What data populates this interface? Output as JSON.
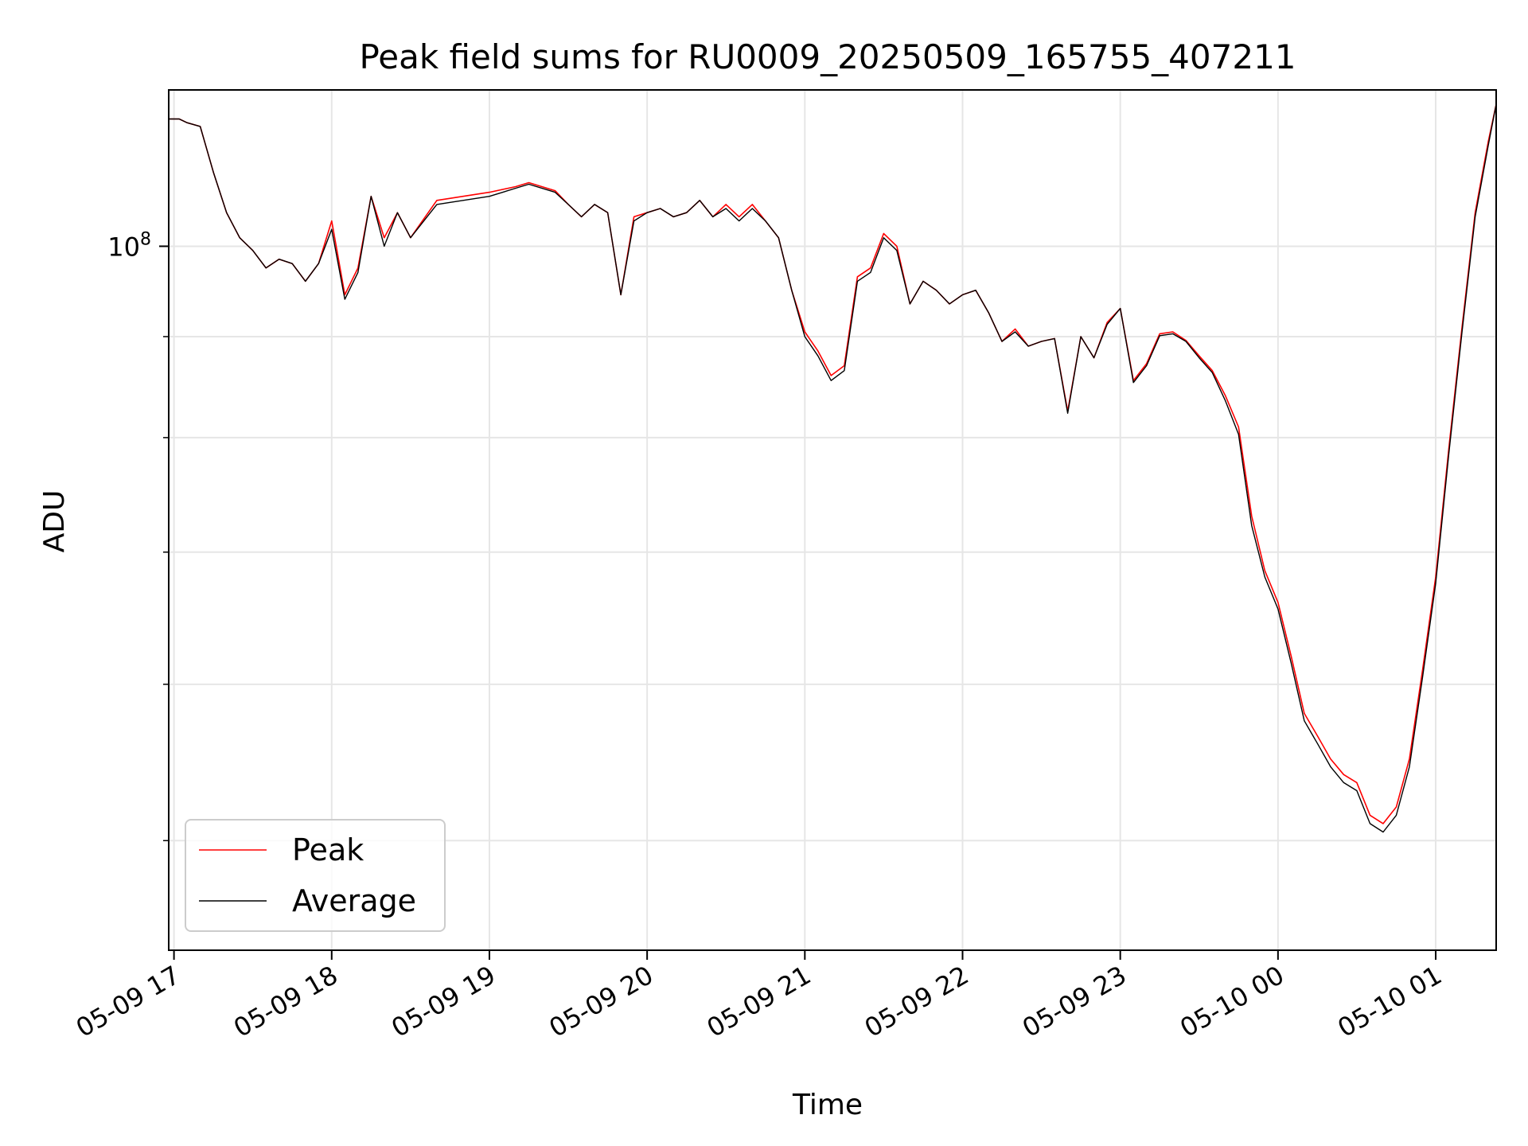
{
  "chart_data": {
    "type": "line",
    "title": "Peak field sums for RU0009_20250509_165755_407211",
    "xlabel": "Time",
    "ylabel": "ADU",
    "y_scale": "log",
    "grid": true,
    "legend_position": "lower-left",
    "x_range": [
      "05-09 16:58",
      "05-10 01:23"
    ],
    "y_range": [
      44000000,
      120000000
    ],
    "x_ticks": [
      "05-09 17",
      "05-09 18",
      "05-09 19",
      "05-09 20",
      "05-09 21",
      "05-09 22",
      "05-09 23",
      "05-10 00",
      "05-10 01"
    ],
    "y_tick_label": {
      "base": "10",
      "exponent": "8",
      "value": 100000000
    },
    "x": [
      "05-09 16:58",
      "05-09 17:02",
      "05-09 17:05",
      "05-09 17:10",
      "05-09 17:15",
      "05-09 17:20",
      "05-09 17:25",
      "05-09 17:30",
      "05-09 17:35",
      "05-09 17:40",
      "05-09 17:45",
      "05-09 17:50",
      "05-09 17:55",
      "05-09 18:00",
      "05-09 18:05",
      "05-09 18:10",
      "05-09 18:15",
      "05-09 18:20",
      "05-09 18:25",
      "05-09 18:30",
      "05-09 18:40",
      "05-09 18:50",
      "05-09 19:00",
      "05-09 19:10",
      "05-09 19:15",
      "05-09 19:25",
      "05-09 19:30",
      "05-09 19:35",
      "05-09 19:40",
      "05-09 19:45",
      "05-09 19:50",
      "05-09 19:55",
      "05-09 20:00",
      "05-09 20:05",
      "05-09 20:10",
      "05-09 20:15",
      "05-09 20:20",
      "05-09 20:25",
      "05-09 20:30",
      "05-09 20:35",
      "05-09 20:40",
      "05-09 20:45",
      "05-09 20:50",
      "05-09 20:55",
      "05-09 21:00",
      "05-09 21:05",
      "05-09 21:10",
      "05-09 21:15",
      "05-09 21:20",
      "05-09 21:25",
      "05-09 21:30",
      "05-09 21:35",
      "05-09 21:40",
      "05-09 21:45",
      "05-09 21:50",
      "05-09 21:55",
      "05-09 22:00",
      "05-09 22:05",
      "05-09 22:10",
      "05-09 22:15",
      "05-09 22:20",
      "05-09 22:25",
      "05-09 22:30",
      "05-09 22:35",
      "05-09 22:40",
      "05-09 22:45",
      "05-09 22:50",
      "05-09 22:55",
      "05-09 23:00",
      "05-09 23:05",
      "05-09 23:10",
      "05-09 23:15",
      "05-09 23:20",
      "05-09 23:25",
      "05-09 23:30",
      "05-09 23:35",
      "05-09 23:40",
      "05-09 23:45",
      "05-09 23:50",
      "05-09 23:55",
      "05-10 00:00",
      "05-10 00:05",
      "05-10 00:10",
      "05-10 00:15",
      "05-10 00:20",
      "05-10 00:25",
      "05-10 00:30",
      "05-10 00:35",
      "05-10 00:40",
      "05-10 00:45",
      "05-10 00:50",
      "05-10 00:55",
      "05-10 01:00",
      "05-10 01:05",
      "05-10 01:10",
      "05-10 01:15",
      "05-10 01:20",
      "05-10 01:23"
    ],
    "series": [
      {
        "name": "Peak",
        "color": "#ff0000",
        "values": [
          116000000,
          116000000,
          115500000,
          115000000,
          109000000,
          104000000,
          101000000,
          99500000,
          97500000,
          98500000,
          98000000,
          96000000,
          98000000,
          103000000,
          94500000,
          97500000,
          106000000,
          101000000,
          104000000,
          101000000,
          105500000,
          106000000,
          106500000,
          107200000,
          107700000,
          106700000,
          105000000,
          103500000,
          105000000,
          104000000,
          94500000,
          103500000,
          104000000,
          104500000,
          103500000,
          104000000,
          105500000,
          103500000,
          105000000,
          103500000,
          105000000,
          103000000,
          101000000,
          95000000,
          90500000,
          88500000,
          86000000,
          87000000,
          96500000,
          97500000,
          101500000,
          100000000,
          93500000,
          96000000,
          95000000,
          93500000,
          94500000,
          95000000,
          92500000,
          89500000,
          90800000,
          89000000,
          89500000,
          89800000,
          82500000,
          90000000,
          87800000,
          91500000,
          93000000,
          85500000,
          87200000,
          90300000,
          90500000,
          89600000,
          88000000,
          86500000,
          84000000,
          81000000,
          73000000,
          68500000,
          66000000,
          62000000,
          58000000,
          56500000,
          55000000,
          54000000,
          53500000,
          51500000,
          51000000,
          52000000,
          55000000,
          61000000,
          68000000,
          79000000,
          91000000,
          104000000,
          113000000,
          118000000
        ]
      },
      {
        "name": "Average",
        "color": "#000000",
        "values": [
          116000000,
          116000000,
          115500000,
          115000000,
          109000000,
          104000000,
          101000000,
          99500000,
          97500000,
          98500000,
          98000000,
          96000000,
          98000000,
          102000000,
          94000000,
          97000000,
          106000000,
          100000000,
          104000000,
          101000000,
          105000000,
          105500000,
          106000000,
          107000000,
          107500000,
          106500000,
          105000000,
          103500000,
          105000000,
          104000000,
          94500000,
          103000000,
          104000000,
          104500000,
          103500000,
          104000000,
          105500000,
          103500000,
          104500000,
          103000000,
          104500000,
          103000000,
          101000000,
          95000000,
          90000000,
          88000000,
          85500000,
          86500000,
          96000000,
          97000000,
          101000000,
          99500000,
          93500000,
          96000000,
          95000000,
          93500000,
          94500000,
          95000000,
          92500000,
          89500000,
          90500000,
          89000000,
          89500000,
          89800000,
          82300000,
          90000000,
          87800000,
          91300000,
          93000000,
          85300000,
          87000000,
          90100000,
          90300000,
          89500000,
          87800000,
          86300000,
          83500000,
          80300000,
          72200000,
          68000000,
          65500000,
          61500000,
          57500000,
          56000000,
          54500000,
          53500000,
          53000000,
          51000000,
          50500000,
          51500000,
          54500000,
          60500000,
          67500000,
          78500000,
          90500000,
          103500000,
          112500000,
          118000000
        ]
      }
    ]
  }
}
